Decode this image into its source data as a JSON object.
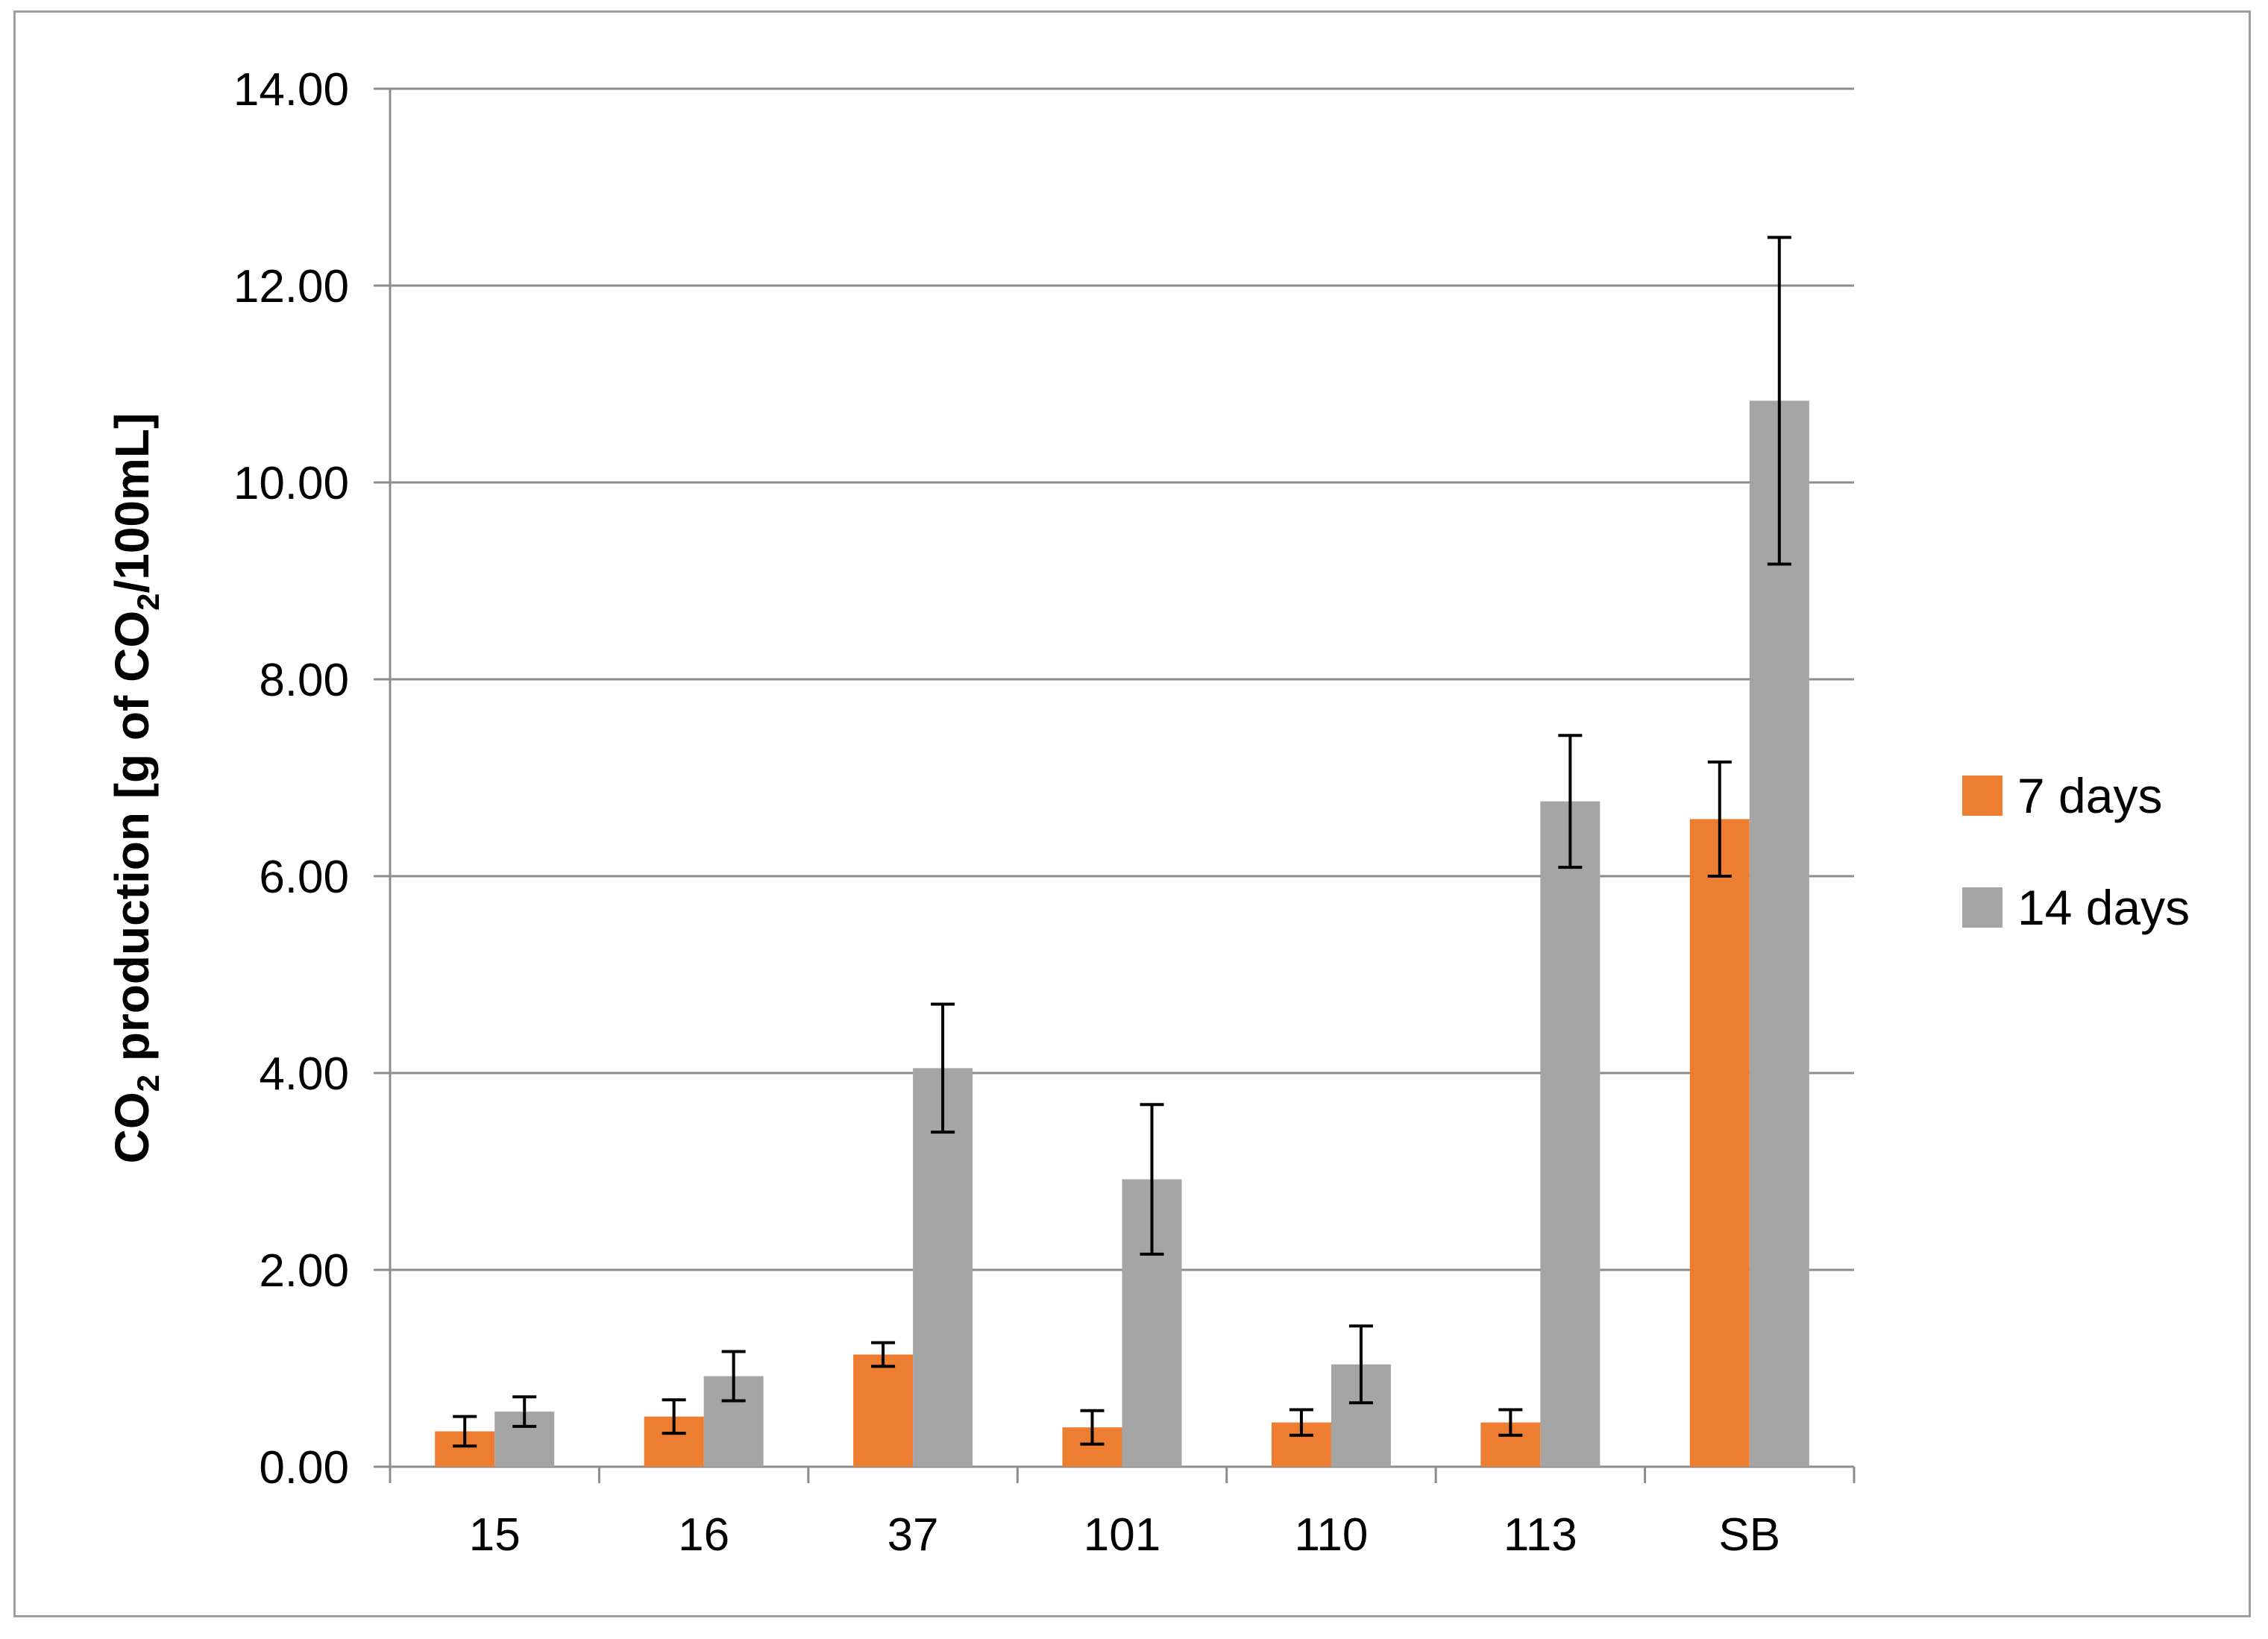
{
  "chart_data": {
    "type": "bar",
    "categories": [
      "15",
      "16",
      "37",
      "101",
      "110",
      "113",
      "SB"
    ],
    "ylabel_parts": {
      "a": "CO",
      "a_sub": "2",
      "b": " production [g of CO",
      "b_sub": "2",
      "c": "/100mL]"
    },
    "ylim": [
      0,
      14
    ],
    "yticks": [
      "0.00",
      "2.00",
      "4.00",
      "6.00",
      "8.00",
      "10.00",
      "12.00",
      "14.00"
    ],
    "grid": true,
    "legend_position": "right",
    "series": [
      {
        "name": "7 days",
        "color": "#ED7D31",
        "values": [
          0.36,
          0.51,
          1.14,
          0.4,
          0.45,
          0.45,
          6.58
        ],
        "errors": [
          0.15,
          0.17,
          0.12,
          0.17,
          0.13,
          0.13,
          0.58
        ]
      },
      {
        "name": "14 days",
        "color": "#A5A5A5",
        "values": [
          0.56,
          0.92,
          4.05,
          2.92,
          1.04,
          6.76,
          10.83
        ],
        "errors": [
          0.15,
          0.25,
          0.65,
          0.76,
          0.39,
          0.67,
          1.66
        ]
      }
    ]
  }
}
